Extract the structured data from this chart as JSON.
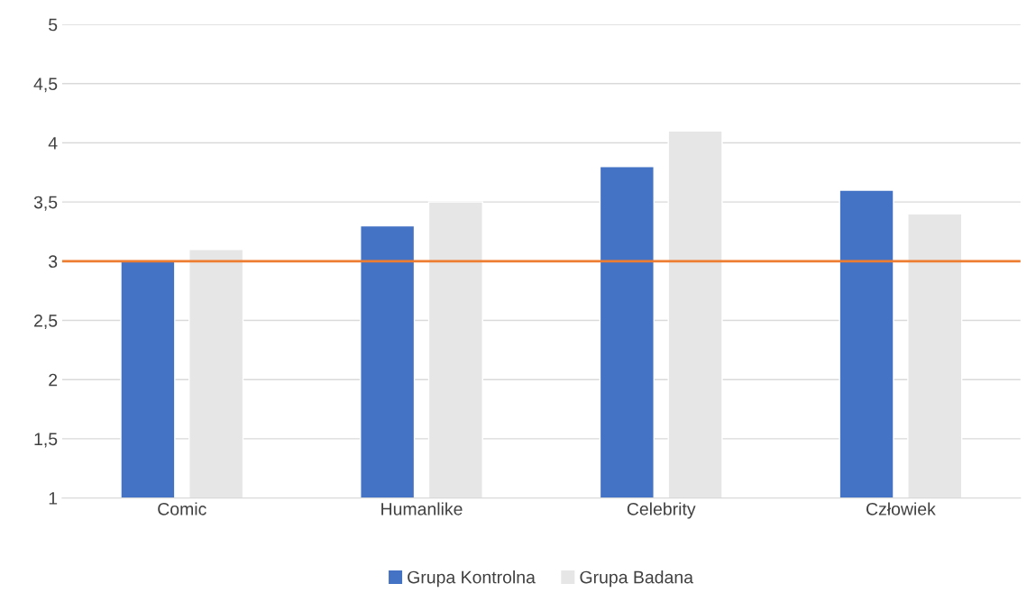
{
  "chart_data": {
    "type": "bar",
    "categories": [
      "Comic",
      "Humanlike",
      "Celebrity",
      "Człowiek"
    ],
    "series": [
      {
        "name": "Grupa Kontrolna",
        "color": "#4472c4",
        "values": [
          3.0,
          3.3,
          3.8,
          3.6
        ]
      },
      {
        "name": "Grupa Badana",
        "color": "#e7e6e6",
        "values": [
          3.1,
          3.5,
          4.1,
          3.4
        ]
      }
    ],
    "ylim": [
      1,
      5
    ],
    "yticks": [
      1,
      {
        "value": 1.5,
        "label": "1,5"
      },
      2,
      {
        "value": 2.5,
        "label": "2,5"
      },
      3,
      {
        "value": 3.5,
        "label": "3,5"
      },
      4,
      {
        "value": 4.5,
        "label": "4,5"
      },
      5
    ],
    "ref_lines": [
      {
        "axis": "y",
        "value": 3,
        "color": "#ed7d31"
      }
    ],
    "grid": "y",
    "legend": "bottom"
  }
}
